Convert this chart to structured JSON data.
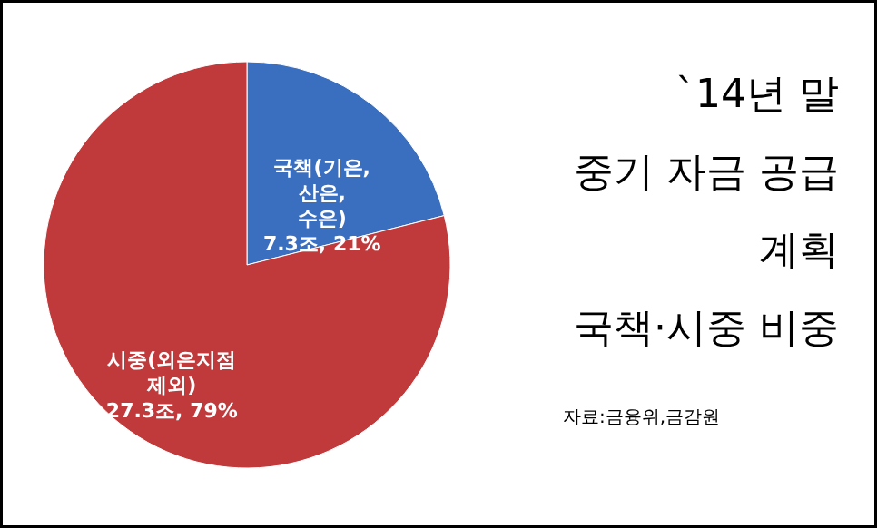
{
  "chart_data": {
    "type": "pie",
    "title": "`14년 말\n중기 자금 공급\n계획\n국책·시중 비중",
    "categories": [
      "국책(기은, 산은, 수은)",
      "시중(외은지점 제외)"
    ],
    "values": [
      7.3,
      27.3
    ],
    "value_labels": [
      "7.3조, 21%",
      "27.3조, 79%"
    ],
    "colors": [
      "#3a6fc0",
      "#c0393b"
    ],
    "annotations": [
      "자료:금융위,금감원"
    ]
  }
}
